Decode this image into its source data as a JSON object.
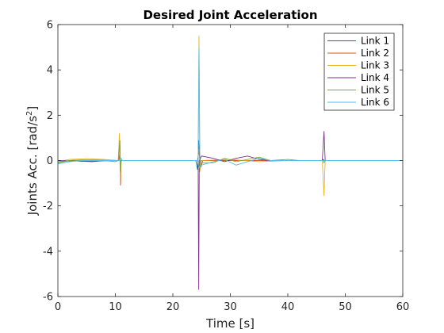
{
  "chart_data": {
    "type": "line",
    "title": "Desired Joint Acceleration",
    "xlabel": "Time [s]",
    "ylabel_main": "Joints Acc. [rad/s",
    "ylabel_sup": "2",
    "ylabel_end": "]",
    "xlim": [
      0,
      60
    ],
    "ylim": [
      -6,
      6
    ],
    "xticks": [
      0,
      10,
      20,
      30,
      40,
      50,
      60
    ],
    "yticks": [
      -6,
      -4,
      -2,
      0,
      2,
      4,
      6
    ],
    "grid": false,
    "legend_position": "top-right",
    "series": [
      {
        "name": "Link 1",
        "color": "#0072BD",
        "points": [
          [
            0,
            -0.1
          ],
          [
            2,
            0.0
          ],
          [
            4,
            0.02
          ],
          [
            6,
            0.02
          ],
          [
            8,
            0.01
          ],
          [
            10.5,
            0.0
          ],
          [
            10.8,
            0.3
          ],
          [
            10.9,
            -0.3
          ],
          [
            11,
            0.0
          ],
          [
            24,
            0.0
          ],
          [
            24.3,
            -0.4
          ],
          [
            24.5,
            0.9
          ],
          [
            24.7,
            -0.2
          ],
          [
            25,
            0.0
          ],
          [
            30,
            0.0
          ],
          [
            38,
            0.0
          ],
          [
            46,
            0.0
          ],
          [
            46.2,
            0.05
          ],
          [
            46.4,
            -0.05
          ],
          [
            46.6,
            0.0
          ],
          [
            60,
            0.0
          ]
        ]
      },
      {
        "name": "Link 2",
        "color": "#D95319",
        "points": [
          [
            0,
            -0.05
          ],
          [
            3,
            0.0
          ],
          [
            6,
            -0.03
          ],
          [
            10,
            0.0
          ],
          [
            10.7,
            0.0
          ],
          [
            10.8,
            0.7
          ],
          [
            10.9,
            -1.1
          ],
          [
            11,
            0.0
          ],
          [
            24.3,
            0.0
          ],
          [
            24.6,
            0.5
          ],
          [
            24.9,
            -0.3
          ],
          [
            25.2,
            0.0
          ],
          [
            30,
            0.0
          ],
          [
            40,
            0.0
          ],
          [
            60,
            0.0
          ]
        ]
      },
      {
        "name": "Link 3",
        "color": "#EDB120",
        "points": [
          [
            0,
            -0.05
          ],
          [
            2,
            0.05
          ],
          [
            5,
            0.08
          ],
          [
            8,
            0.05
          ],
          [
            10.5,
            0.0
          ],
          [
            10.7,
            1.2
          ],
          [
            10.85,
            -0.8
          ],
          [
            11,
            0.0
          ],
          [
            24.4,
            0.0
          ],
          [
            24.55,
            5.5
          ],
          [
            24.7,
            -0.5
          ],
          [
            24.9,
            0.0
          ],
          [
            30,
            0.05
          ],
          [
            35,
            -0.05
          ],
          [
            40,
            0.0
          ],
          [
            46,
            0.0
          ],
          [
            46.3,
            -1.55
          ],
          [
            46.5,
            0.0
          ],
          [
            60,
            0.0
          ]
        ]
      },
      {
        "name": "Link 4",
        "color": "#7E2F8E",
        "points": [
          [
            0,
            0.0
          ],
          [
            3,
            -0.02
          ],
          [
            6,
            -0.05
          ],
          [
            8,
            0.0
          ],
          [
            10.8,
            0.0
          ],
          [
            11,
            0.0
          ],
          [
            24.4,
            0.0
          ],
          [
            24.5,
            -5.7
          ],
          [
            24.6,
            0.0
          ],
          [
            25,
            0.2
          ],
          [
            27,
            0.1
          ],
          [
            29,
            -0.05
          ],
          [
            31,
            0.1
          ],
          [
            33,
            0.2
          ],
          [
            35,
            0.05
          ],
          [
            37,
            0.0
          ],
          [
            46,
            0.0
          ],
          [
            46.3,
            1.3
          ],
          [
            46.5,
            0.0
          ],
          [
            60,
            0.0
          ]
        ]
      },
      {
        "name": "Link 5",
        "color": "#77AC30",
        "points": [
          [
            0,
            -0.1
          ],
          [
            2,
            0.0
          ],
          [
            4,
            0.03
          ],
          [
            7,
            0.03
          ],
          [
            10,
            -0.05
          ],
          [
            10.5,
            0.0
          ],
          [
            10.8,
            0.9
          ],
          [
            10.9,
            -0.5
          ],
          [
            11,
            0.0
          ],
          [
            24.3,
            0.0
          ],
          [
            24.6,
            -0.3
          ],
          [
            25,
            -0.1
          ],
          [
            27,
            -0.1
          ],
          [
            29,
            0.1
          ],
          [
            31,
            -0.05
          ],
          [
            33,
            0.05
          ],
          [
            35,
            0.15
          ],
          [
            37,
            0.0
          ],
          [
            40,
            0.05
          ],
          [
            42,
            0.0
          ],
          [
            60,
            0.0
          ]
        ]
      },
      {
        "name": "Link 6",
        "color": "#4DBEEE",
        "points": [
          [
            0,
            -0.15
          ],
          [
            2,
            -0.05
          ],
          [
            4,
            0.0
          ],
          [
            8,
            0.0
          ],
          [
            10.8,
            0.0
          ],
          [
            11,
            0.1
          ],
          [
            11.2,
            0.0
          ],
          [
            24.4,
            0.0
          ],
          [
            24.55,
            5.0
          ],
          [
            24.7,
            -0.3
          ],
          [
            25,
            -0.2
          ],
          [
            27,
            -0.05
          ],
          [
            29,
            0.05
          ],
          [
            31,
            -0.2
          ],
          [
            33,
            -0.05
          ],
          [
            35,
            0.1
          ],
          [
            37,
            0.0
          ],
          [
            40,
            0.0
          ],
          [
            46,
            0.0
          ],
          [
            46.3,
            -0.1
          ],
          [
            46.5,
            0.0
          ],
          [
            60,
            0.0
          ]
        ]
      }
    ]
  }
}
